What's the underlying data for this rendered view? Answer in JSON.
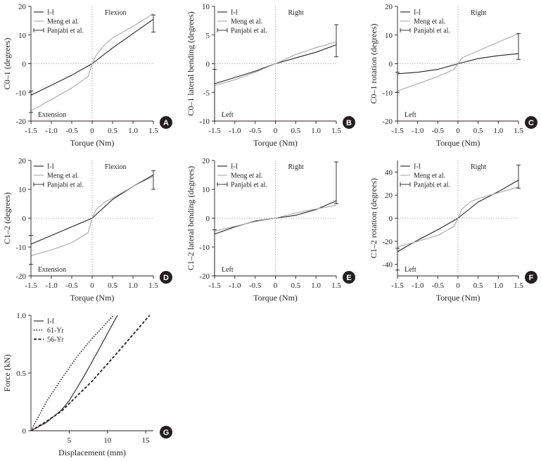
{
  "chart_data": [
    {
      "id": "A",
      "type": "line",
      "ylabel": "C0–1 (degrees)",
      "xlabel": "Torque (Nm)",
      "xlim": [
        -1.5,
        1.5
      ],
      "ylim": [
        -20,
        20
      ],
      "xticks": [
        -1.5,
        -1.0,
        -0.5,
        0,
        0.5,
        1.0,
        1.5
      ],
      "yticks": [
        -20,
        -10,
        0,
        10,
        20
      ],
      "legend": [
        "I-I",
        "Meng et al.",
        "Panjabi et al."
      ],
      "annotations": {
        "top": "Flexion",
        "bottom": "Extension"
      },
      "series": [
        {
          "name": "I-I",
          "x": [
            -1.5,
            -1.0,
            -0.5,
            0,
            0.5,
            1.0,
            1.5
          ],
          "y": [
            -11,
            -7.5,
            -4,
            0,
            5.5,
            10.5,
            15.5
          ]
        },
        {
          "name": "Meng et al.",
          "x": [
            -1.5,
            -1.0,
            -0.5,
            -0.1,
            0,
            0.1,
            0.3,
            0.5,
            1.0,
            1.5
          ],
          "y": [
            -16.5,
            -12.5,
            -8.5,
            -4.5,
            0,
            3,
            6.5,
            9,
            13,
            17.5
          ]
        }
      ],
      "error_bars": [
        {
          "x": -1.5,
          "y": -13,
          "low": -17,
          "high": -9.5
        },
        {
          "x": 1.5,
          "y": 15.5,
          "low": 11,
          "high": 17
        }
      ]
    },
    {
      "id": "B",
      "type": "line",
      "ylabel": "C0–1 lateral bending (degrees)",
      "xlabel": "Torque (Nm)",
      "xlim": [
        -1.5,
        1.5
      ],
      "ylim": [
        -10,
        10
      ],
      "xticks": [
        -1.5,
        -1.0,
        -0.5,
        0,
        0.5,
        1.0,
        1.5
      ],
      "yticks": [
        -10,
        -5,
        0,
        5,
        10
      ],
      "legend": [
        "I-I",
        "Meng et al.",
        "Panjabi et al."
      ],
      "annotations": {
        "top": "Right",
        "bottom": "Left"
      },
      "series": [
        {
          "name": "I-I",
          "x": [
            -1.5,
            -1.0,
            -0.5,
            0,
            0.5,
            1.0,
            1.5
          ],
          "y": [
            -3.5,
            -2.4,
            -1.3,
            0,
            1.0,
            2.0,
            3.3
          ]
        },
        {
          "name": "Meng et al.",
          "x": [
            -1.5,
            -1.0,
            -0.5,
            0,
            0.5,
            1.0,
            1.5
          ],
          "y": [
            -3.8,
            -2.8,
            -1.5,
            0,
            1.6,
            2.8,
            3.8
          ]
        }
      ],
      "error_bars": [
        {
          "x": -1.5,
          "y": -3.5,
          "low": -10,
          "high": -1
        },
        {
          "x": 1.5,
          "y": 3.5,
          "low": 1.2,
          "high": 6.8
        }
      ]
    },
    {
      "id": "C",
      "type": "line",
      "ylabel": "C0–1 rotation (degrees)",
      "xlabel": "Torque (Nm)",
      "xlim": [
        -1.5,
        1.5
      ],
      "ylim": [
        -20,
        20
      ],
      "xticks": [
        -1.5,
        -1.0,
        -0.5,
        0,
        0.5,
        1.0,
        1.5
      ],
      "yticks": [
        -20,
        -10,
        0,
        10,
        20
      ],
      "legend": [
        "I-I",
        "Meng et al.",
        "Panjabi et al."
      ],
      "annotations": {
        "top": "Right",
        "bottom": "Left"
      },
      "series": [
        {
          "name": "I-I",
          "x": [
            -1.5,
            -1.0,
            -0.5,
            0,
            0.5,
            1.0,
            1.5
          ],
          "y": [
            -3.5,
            -3.0,
            -2.0,
            0,
            1.8,
            2.8,
            3.5
          ]
        },
        {
          "name": "Meng et al.",
          "x": [
            -1.5,
            -1.0,
            -0.5,
            -0.1,
            0,
            0.1,
            0.5,
            1.0,
            1.5
          ],
          "y": [
            -9.5,
            -7.0,
            -4.5,
            -2.0,
            0,
            2.0,
            4.5,
            7.5,
            10.5
          ]
        }
      ],
      "error_bars": [
        {
          "x": -1.5,
          "y": -3.5,
          "low": -10,
          "high": -3
        },
        {
          "x": 1.5,
          "y": 3.5,
          "low": 1.5,
          "high": 10.5
        }
      ]
    },
    {
      "id": "D",
      "type": "line",
      "ylabel": "C1–2 (degrees)",
      "xlabel": "Torque (Nm)",
      "xlim": [
        -1.5,
        1.5
      ],
      "ylim": [
        -20,
        20
      ],
      "xticks": [
        -1.5,
        -1.0,
        -0.5,
        0,
        0.5,
        1.0,
        1.5
      ],
      "yticks": [
        -20,
        -10,
        0,
        10,
        20
      ],
      "legend": [
        "I-I",
        "Meng et al.",
        "Panjabi et al."
      ],
      "annotations": {
        "top": "Flexion",
        "bottom": "Extension"
      },
      "series": [
        {
          "name": "I-I",
          "x": [
            -1.5,
            -1.0,
            -0.5,
            0,
            0.5,
            1.0,
            1.5
          ],
          "y": [
            -9,
            -6,
            -3,
            0,
            6.5,
            11,
            15
          ]
        },
        {
          "name": "Meng et al.",
          "x": [
            -1.5,
            -1.0,
            -0.5,
            -0.1,
            0,
            0.1,
            0.3,
            0.5,
            1.0,
            1.5
          ],
          "y": [
            -13,
            -11,
            -8.5,
            -5,
            0,
            3,
            5.5,
            7,
            11,
            14.5
          ]
        }
      ],
      "error_bars": [
        {
          "x": -1.5,
          "y": -10.5,
          "low": -16,
          "high": -6
        },
        {
          "x": 1.5,
          "y": 14.5,
          "low": 10,
          "high": 16.5
        }
      ]
    },
    {
      "id": "E",
      "type": "line",
      "ylabel": "C1–2 lateral bending (degrees)",
      "xlabel": "Torque (Nm)",
      "xlim": [
        -1.5,
        1.5
      ],
      "ylim": [
        -20,
        20
      ],
      "xticks": [
        -1.5,
        -1.0,
        -0.5,
        0,
        0.5,
        1.0,
        1.5
      ],
      "yticks": [
        -20,
        -10,
        0,
        10,
        20
      ],
      "legend": [
        "I-I",
        "Meng et al.",
        "Panjabi et al."
      ],
      "annotations": {
        "top": "Right",
        "bottom": "Left"
      },
      "series": [
        {
          "name": "I-I",
          "x": [
            -1.5,
            -1.0,
            -0.5,
            0,
            0.5,
            1.0,
            1.5
          ],
          "y": [
            -5.5,
            -3.0,
            -1.0,
            0,
            1.0,
            3.0,
            6.0
          ]
        },
        {
          "name": "Meng et al.",
          "x": [
            -1.5,
            -1.0,
            -0.5,
            0,
            0.5,
            1.0,
            1.5
          ],
          "y": [
            -4.5,
            -2.8,
            -1.2,
            0,
            1.8,
            3.2,
            4.5
          ]
        }
      ],
      "error_bars": [
        {
          "x": -1.5,
          "y": -4.5,
          "low": -20,
          "high": -4
        },
        {
          "x": 1.5,
          "y": 5.5,
          "low": 5,
          "high": 19.5
        }
      ]
    },
    {
      "id": "F",
      "type": "line",
      "ylabel": "C1–2 rotation (degrees)",
      "xlabel": "Torque (Nm)",
      "xlim": [
        -1.5,
        1.5
      ],
      "ylim": [
        -50,
        50
      ],
      "xticks": [
        -1.5,
        -1.0,
        -0.5,
        0,
        0.5,
        1.0,
        1.5
      ],
      "yticks": [
        -40,
        -20,
        0,
        20,
        40
      ],
      "legend": [
        "I-I",
        "Meng et al.",
        "Panjabi et al."
      ],
      "annotations": {
        "top": "Right",
        "bottom": "Left"
      },
      "series": [
        {
          "name": "I-I",
          "x": [
            -1.5,
            -1.0,
            -0.5,
            0,
            0.5,
            1.0,
            1.5
          ],
          "y": [
            -29,
            -19,
            -10,
            0,
            14,
            23,
            33
          ]
        },
        {
          "name": "Meng et al.",
          "x": [
            -1.5,
            -1.0,
            -0.5,
            -0.1,
            0,
            0.1,
            0.3,
            0.5,
            1.0,
            1.5
          ],
          "y": [
            -25,
            -20,
            -15,
            -7,
            0,
            8,
            14,
            17,
            22,
            27
          ]
        }
      ],
      "error_bars": [
        {
          "x": -1.5,
          "y": -29,
          "low": -45,
          "high": -26
        },
        {
          "x": 1.5,
          "y": 31,
          "low": 26,
          "high": 46
        }
      ]
    },
    {
      "id": "G",
      "type": "line",
      "ylabel": "Force (kN)",
      "xlabel": "Displacement (mm)",
      "xlim": [
        0,
        16
      ],
      "ylim": [
        0,
        1.0
      ],
      "xticks": [
        5,
        10,
        15
      ],
      "yticks": [
        0,
        0.5,
        1.0
      ],
      "legend": [
        "I-I",
        "61-Yr",
        "56-Yr"
      ],
      "series": [
        {
          "name": "I-I",
          "x": [
            0,
            2,
            4,
            5,
            7,
            9,
            11.3
          ],
          "y": [
            0,
            0.07,
            0.18,
            0.26,
            0.48,
            0.72,
            1.0
          ]
        },
        {
          "name": "61-Yr",
          "x": [
            0,
            2,
            4,
            6,
            8,
            10.8
          ],
          "y": [
            0,
            0.25,
            0.45,
            0.64,
            0.8,
            1.0
          ]
        },
        {
          "name": "56-Yr",
          "x": [
            0,
            2,
            4,
            6,
            8,
            10,
            12,
            15.5
          ],
          "y": [
            0,
            0.08,
            0.17,
            0.3,
            0.43,
            0.58,
            0.73,
            1.0
          ]
        }
      ]
    }
  ]
}
